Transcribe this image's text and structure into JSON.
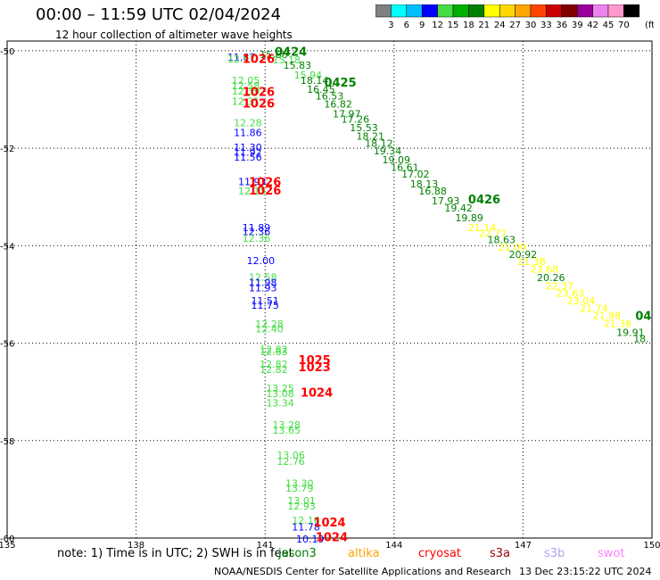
{
  "header": {
    "title": "00:00 – 11:59 UTC 02/04/2024",
    "subtitle": "12 hour collection of altimeter wave heights"
  },
  "colorbar": {
    "unit_label": "(ft)",
    "ticks": [
      "3",
      "6",
      "9",
      "12",
      "15",
      "18",
      "21",
      "24",
      "27",
      "30",
      "33",
      "36",
      "39",
      "42",
      "45",
      "70"
    ],
    "colors": [
      "#808080",
      "#00ffff",
      "#00bfff",
      "#0000ff",
      "#44dd44",
      "#00b000",
      "#008000",
      "#ffff00",
      "#ffd700",
      "#ffa500",
      "#ff4500",
      "#cc0000",
      "#800000",
      "#990099",
      "#ee82ee",
      "#ff99cc",
      "#000000"
    ]
  },
  "footer": {
    "note": "note:  1) Time is in UTC; 2) SWH is in feet",
    "satellites": [
      {
        "name": "jason3",
        "color": "#008000"
      },
      {
        "name": "altika",
        "color": "#ffa500"
      },
      {
        "name": "cryosat",
        "color": "#ff0000"
      },
      {
        "name": "s3a",
        "color": "#990000"
      },
      {
        "name": "s3b",
        "color": "#b0a0f0"
      },
      {
        "name": "swot",
        "color": "#ff80ff"
      }
    ],
    "credit": "NOAA/NESDIS Center for Satellite Applications and Research",
    "timestamp": "13 Dec 23:15:22 UTC 2024"
  },
  "chart_data": {
    "type": "scatter",
    "xlim": [
      135,
      150
    ],
    "ylim": [
      -60.0,
      -49.8
    ],
    "x_ticks": [
      135,
      138,
      141,
      144,
      147,
      150
    ],
    "x_tick_labels": [
      "135",
      "138",
      "141",
      "144",
      "147",
      "150"
    ],
    "y_ticks": [
      -50,
      -52,
      -54,
      -56,
      -58,
      -60
    ],
    "y_tick_labels": [
      "-50",
      "-52",
      "-54",
      "-56",
      "-58",
      "-60"
    ],
    "grid": true,
    "value_points": [
      {
        "x": 140.45,
        "y": -50.2,
        "label": "11.87",
        "color": "#0000ff"
      },
      {
        "x": 140.45,
        "y": -50.24,
        "label": "12.97",
        "color": "#44dd44"
      },
      {
        "x": 140.55,
        "y": -50.68,
        "label": "12.05",
        "color": "#44dd44"
      },
      {
        "x": 140.55,
        "y": -50.79,
        "label": "12.58",
        "color": "#44dd44"
      },
      {
        "x": 140.55,
        "y": -50.9,
        "label": "12.39",
        "color": "#44dd44"
      },
      {
        "x": 140.55,
        "y": -51.11,
        "label": "12.31",
        "color": "#44dd44"
      },
      {
        "x": 140.6,
        "y": -51.55,
        "label": "12.28",
        "color": "#44dd44"
      },
      {
        "x": 140.6,
        "y": -51.75,
        "label": "11.86",
        "color": "#0000ff"
      },
      {
        "x": 140.6,
        "y": -52.05,
        "label": "11.30",
        "color": "#0000ff"
      },
      {
        "x": 140.6,
        "y": -52.15,
        "label": "11.92",
        "color": "#0000ff"
      },
      {
        "x": 140.6,
        "y": -52.25,
        "label": "11.56",
        "color": "#0000ff"
      },
      {
        "x": 140.7,
        "y": -52.76,
        "label": "11.93",
        "color": "#0000ff"
      },
      {
        "x": 140.7,
        "y": -52.95,
        "label": "12.15",
        "color": "#44dd44"
      },
      {
        "x": 140.8,
        "y": -53.7,
        "label": "11.89",
        "color": "#0000ff"
      },
      {
        "x": 140.8,
        "y": -53.78,
        "label": "12.36",
        "color": "#0000ff"
      },
      {
        "x": 140.8,
        "y": -53.92,
        "label": "12.36",
        "color": "#44dd44"
      },
      {
        "x": 140.9,
        "y": -54.38,
        "label": "12.00",
        "color": "#0000ff"
      },
      {
        "x": 140.95,
        "y": -54.72,
        "label": "12.58",
        "color": "#44dd44"
      },
      {
        "x": 140.95,
        "y": -54.83,
        "label": "11.98",
        "color": "#0000ff"
      },
      {
        "x": 140.95,
        "y": -54.94,
        "label": "11.93",
        "color": "#0000ff"
      },
      {
        "x": 141.0,
        "y": -55.2,
        "label": "11.51",
        "color": "#0000ff"
      },
      {
        "x": 141.0,
        "y": -55.29,
        "label": "11.75",
        "color": "#0000ff"
      },
      {
        "x": 141.1,
        "y": -55.68,
        "label": "12.28",
        "color": "#44dd44"
      },
      {
        "x": 141.1,
        "y": -55.78,
        "label": "12.40",
        "color": "#44dd44"
      },
      {
        "x": 141.2,
        "y": -56.2,
        "label": "12.82",
        "color": "#44dd44"
      },
      {
        "x": 141.2,
        "y": -56.25,
        "label": "12.83",
        "color": "#44dd44"
      },
      {
        "x": 141.2,
        "y": -56.5,
        "label": "12.82",
        "color": "#44dd44"
      },
      {
        "x": 141.2,
        "y": -56.61,
        "label": "12.82",
        "color": "#44dd44"
      },
      {
        "x": 141.35,
        "y": -57.0,
        "label": "13.25",
        "color": "#44dd44"
      },
      {
        "x": 141.35,
        "y": -57.11,
        "label": "13.08",
        "color": "#44dd44"
      },
      {
        "x": 141.35,
        "y": -57.3,
        "label": "13.34",
        "color": "#44dd44"
      },
      {
        "x": 141.5,
        "y": -57.75,
        "label": "13.28",
        "color": "#44dd44"
      },
      {
        "x": 141.5,
        "y": -57.86,
        "label": "13.65",
        "color": "#44dd44"
      },
      {
        "x": 141.6,
        "y": -58.37,
        "label": "13.06",
        "color": "#44dd44"
      },
      {
        "x": 141.6,
        "y": -58.5,
        "label": "12.76",
        "color": "#44dd44"
      },
      {
        "x": 141.8,
        "y": -58.95,
        "label": "13.30",
        "color": "#44dd44"
      },
      {
        "x": 141.8,
        "y": -59.05,
        "label": "13.79",
        "color": "#44dd44"
      },
      {
        "x": 141.85,
        "y": -59.3,
        "label": "13.01",
        "color": "#44dd44"
      },
      {
        "x": 141.85,
        "y": -59.41,
        "label": "12.93",
        "color": "#44dd44"
      },
      {
        "x": 141.95,
        "y": -59.71,
        "label": "12.16",
        "color": "#44dd44"
      },
      {
        "x": 141.95,
        "y": -59.84,
        "label": "11.78",
        "color": "#0000ff"
      },
      {
        "x": 142.05,
        "y": -60.09,
        "label": "10.19",
        "color": "#0000ff"
      },
      {
        "x": 141.2,
        "y": -50.15,
        "label": "15.66",
        "color": "#008000"
      },
      {
        "x": 141.5,
        "y": -50.26,
        "label": "15.18",
        "color": "#44dd44"
      },
      {
        "x": 141.75,
        "y": -50.37,
        "label": "15.83",
        "color": "#008000"
      },
      {
        "x": 142.0,
        "y": -50.57,
        "label": "15.94",
        "color": "#44dd44"
      },
      {
        "x": 142.15,
        "y": -50.68,
        "label": "18.14",
        "color": "#008000"
      },
      {
        "x": 142.3,
        "y": -50.86,
        "label": "16.45",
        "color": "#008000"
      },
      {
        "x": 142.5,
        "y": -51.0,
        "label": "16.53",
        "color": "#008000"
      },
      {
        "x": 142.7,
        "y": -51.16,
        "label": "16.82",
        "color": "#008000"
      },
      {
        "x": 142.9,
        "y": -51.37,
        "label": "17.97",
        "color": "#008000"
      },
      {
        "x": 143.1,
        "y": -51.48,
        "label": "17.26",
        "color": "#008000"
      },
      {
        "x": 143.3,
        "y": -51.65,
        "label": "15.53",
        "color": "#008000"
      },
      {
        "x": 143.45,
        "y": -51.82,
        "label": "18.21",
        "color": "#008000"
      },
      {
        "x": 143.65,
        "y": -51.97,
        "label": "18.12",
        "color": "#008000"
      },
      {
        "x": 143.85,
        "y": -52.13,
        "label": "19.34",
        "color": "#008000"
      },
      {
        "x": 144.05,
        "y": -52.31,
        "label": "19.09",
        "color": "#008000"
      },
      {
        "x": 144.25,
        "y": -52.46,
        "label": "16.61",
        "color": "#008000"
      },
      {
        "x": 144.5,
        "y": -52.6,
        "label": "17.02",
        "color": "#008000"
      },
      {
        "x": 144.7,
        "y": -52.8,
        "label": "18.13",
        "color": "#008000"
      },
      {
        "x": 144.9,
        "y": -52.95,
        "label": "16.88",
        "color": "#008000"
      },
      {
        "x": 145.2,
        "y": -53.15,
        "label": "17.93",
        "color": "#008000"
      },
      {
        "x": 145.5,
        "y": -53.3,
        "label": "19.42",
        "color": "#008000"
      },
      {
        "x": 145.75,
        "y": -53.5,
        "label": "19.89",
        "color": "#008000"
      },
      {
        "x": 146.05,
        "y": -53.7,
        "label": "21.14",
        "color": "#ffff00"
      },
      {
        "x": 146.3,
        "y": -53.82,
        "label": "22.77",
        "color": "#ffff00"
      },
      {
        "x": 146.5,
        "y": -53.95,
        "label": "18.63",
        "color": "#008000"
      },
      {
        "x": 146.75,
        "y": -54.1,
        "label": "21.09",
        "color": "#ffff00"
      },
      {
        "x": 147.0,
        "y": -54.25,
        "label": "20.92",
        "color": "#008000"
      },
      {
        "x": 147.2,
        "y": -54.4,
        "label": "21.38",
        "color": "#ffff00"
      },
      {
        "x": 147.5,
        "y": -54.55,
        "label": "23.68",
        "color": "#ffff00"
      },
      {
        "x": 147.65,
        "y": -54.73,
        "label": "20.26",
        "color": "#008000"
      },
      {
        "x": 147.85,
        "y": -54.9,
        "label": "22.37",
        "color": "#ffff00"
      },
      {
        "x": 148.1,
        "y": -55.05,
        "label": "23.63",
        "color": "#ffff00"
      },
      {
        "x": 148.35,
        "y": -55.2,
        "label": "23.04",
        "color": "#ffff00"
      },
      {
        "x": 148.65,
        "y": -55.36,
        "label": "21.74",
        "color": "#ffff00"
      },
      {
        "x": 148.95,
        "y": -55.5,
        "label": "21.98",
        "color": "#ffff00"
      },
      {
        "x": 149.2,
        "y": -55.67,
        "label": "21.36",
        "color": "#ffff00"
      },
      {
        "x": 149.5,
        "y": -55.85,
        "label": "19.91",
        "color": "#008000"
      },
      {
        "x": 149.75,
        "y": -55.98,
        "label": "18.",
        "color": "#008000"
      }
    ],
    "time_points": [
      {
        "x": 140.85,
        "y": -50.25,
        "label": "1026",
        "color": "#ff0000"
      },
      {
        "x": 141.6,
        "y": -50.1,
        "label": "0424",
        "color": "#008000"
      },
      {
        "x": 142.75,
        "y": -50.73,
        "label": "0425",
        "color": "#008000"
      },
      {
        "x": 140.85,
        "y": -50.93,
        "label": "1026",
        "color": "#ff0000"
      },
      {
        "x": 140.85,
        "y": -51.16,
        "label": "1026",
        "color": "#ff0000"
      },
      {
        "x": 141.0,
        "y": -52.78,
        "label": "1026",
        "color": "#ff0000"
      },
      {
        "x": 141.0,
        "y": -52.95,
        "label": "1026",
        "color": "#ff0000"
      },
      {
        "x": 146.1,
        "y": -53.13,
        "label": "0426",
        "color": "#008000"
      },
      {
        "x": 149.8,
        "y": -55.52,
        "label": "04",
        "color": "#008000"
      },
      {
        "x": 142.15,
        "y": -56.43,
        "label": "1025",
        "color": "#ff0000"
      },
      {
        "x": 142.15,
        "y": -56.58,
        "label": "1023",
        "color": "#ff0000"
      },
      {
        "x": 142.2,
        "y": -57.1,
        "label": "1024",
        "color": "#ff0000"
      },
      {
        "x": 142.5,
        "y": -59.76,
        "label": "1024",
        "color": "#ff0000"
      },
      {
        "x": 142.55,
        "y": -60.06,
        "label": "1024",
        "color": "#ff0000"
      }
    ]
  }
}
